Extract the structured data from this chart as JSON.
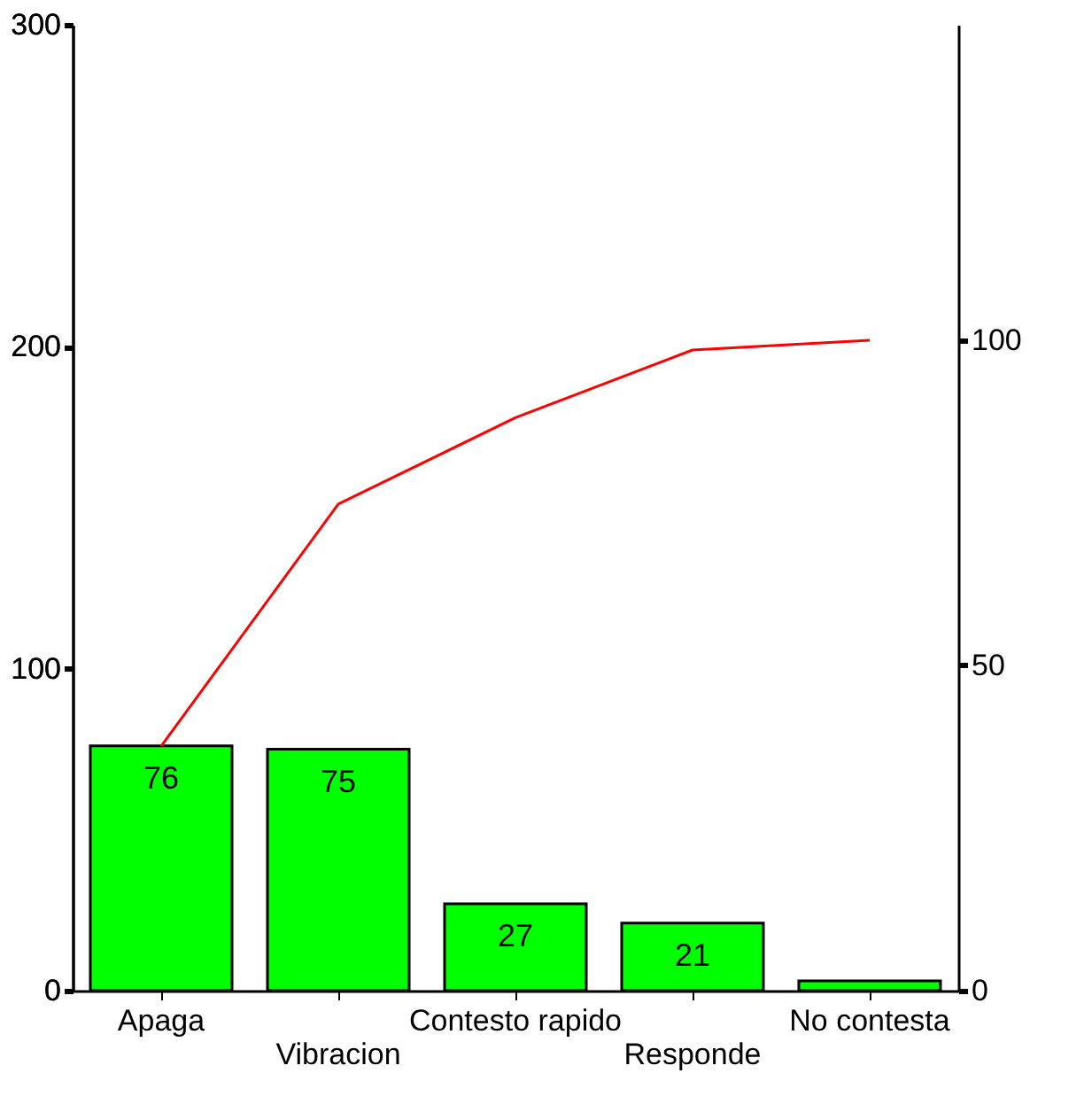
{
  "chart_data": {
    "type": "bar",
    "categories": [
      "Apaga",
      "Vibracion",
      "Contesto rapido",
      "Responde",
      "No contesta"
    ],
    "series": [
      {
        "color": "#00ff00",
        "values": [
          76,
          75,
          27,
          21,
          3
        ],
        "value_labels": [
          "76",
          "75",
          "27",
          "21",
          null
        ]
      },
      {
        "type": "line",
        "axis": "y2",
        "color": "#ff0000",
        "values": [
          37.6,
          74.8,
          88.1,
          98.5,
          100
        ]
      }
    ],
    "ylim": [
      0,
      300
    ],
    "yticks": [
      0,
      100,
      200,
      300
    ],
    "y2lim": [
      0,
      148.5
    ],
    "y2ticks": [
      0,
      50,
      100
    ],
    "grid": false,
    "marker": "none",
    "line_style": "solid"
  }
}
